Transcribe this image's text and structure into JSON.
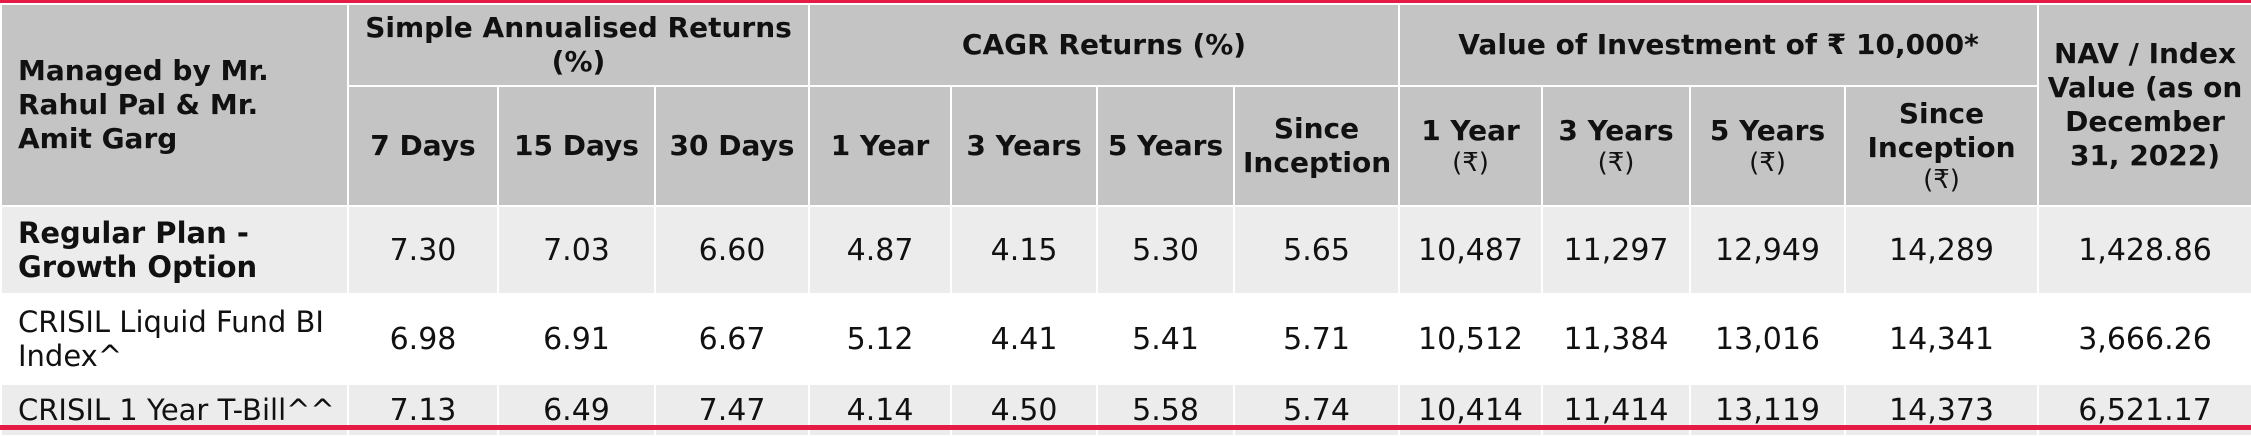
{
  "header": {
    "managed_by": "Managed by Mr. Rahul Pal & Mr. Amit Garg",
    "groups": {
      "simple": "Simple Annualised Returns (%)",
      "cagr": "CAGR Returns (%)",
      "value": "Value of Investment of ₹ 10,000*",
      "nav": "NAV / Index Value (as on December 31, 2022)"
    },
    "simple_cols": [
      "7 Days",
      "15 Days",
      "30 Days"
    ],
    "cagr_cols": [
      "1 Year",
      "3 Years",
      "5 Years",
      "Since Inception"
    ],
    "value_cols": [
      "1 Year",
      "3 Years",
      "5 Years",
      "Since Inception"
    ],
    "rupee_unit": "(₹)"
  },
  "rows": [
    {
      "label": "Regular Plan - Growth Option",
      "values": [
        "7.30",
        "7.03",
        "6.60",
        "4.87",
        "4.15",
        "5.30",
        "5.65",
        "10,487",
        "11,297",
        "12,949",
        "14,289",
        "1,428.86"
      ]
    },
    {
      "label": "CRISIL Liquid Fund BI Index^",
      "values": [
        "6.98",
        "6.91",
        "6.67",
        "5.12",
        "4.41",
        "5.41",
        "5.71",
        "10,512",
        "11,384",
        "13,016",
        "14,341",
        "3,666.26"
      ]
    },
    {
      "label": "CRISIL 1 Year T-Bill^^",
      "values": [
        "7.13",
        "6.49",
        "7.47",
        "4.14",
        "4.50",
        "5.58",
        "5.74",
        "10,414",
        "11,414",
        "13,119",
        "14,373",
        "6,521.17"
      ]
    }
  ],
  "colors": {
    "accent_line": "#e31b45",
    "header_bg": "#c4c4c4",
    "shaded_row_bg": "#ececec"
  }
}
